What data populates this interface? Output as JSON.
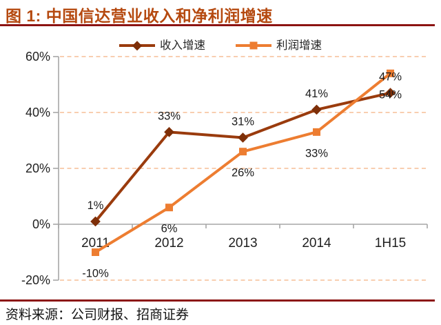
{
  "header": {
    "title": "图 1: 中国信达营业收入和净利润增速"
  },
  "theme": {
    "title_color": "#B5490F",
    "rule_color": "#8C1312",
    "background": "#FFFFFF"
  },
  "chart_data": {
    "type": "line",
    "title": "中国信达营业收入和净利润增速",
    "categories": [
      "2011",
      "2012",
      "2013",
      "2014",
      "1H15"
    ],
    "series": [
      {
        "name": "收入增速",
        "marker": "diamond",
        "color": "#9A3B0D",
        "marker_color": "#7E2F08",
        "values": [
          1,
          33,
          31,
          41,
          47
        ],
        "data_labels": [
          "1%",
          "33%",
          "31%",
          "41%",
          "47%"
        ],
        "label_position": "above"
      },
      {
        "name": "利润增速",
        "marker": "square",
        "color": "#ED7D31",
        "marker_color": "#ED7D31",
        "values": [
          -10,
          6,
          26,
          33,
          54
        ],
        "data_labels": [
          "-10%",
          "6%",
          "26%",
          "33%",
          "54%"
        ],
        "label_position": "below"
      }
    ],
    "ylim": [
      -20,
      60
    ],
    "yticks": [
      {
        "value": 60,
        "label": "60%"
      },
      {
        "value": 40,
        "label": "40%"
      },
      {
        "value": 20,
        "label": "20%"
      },
      {
        "value": 0,
        "label": "0%"
      },
      {
        "value": -20,
        "label": "-20%"
      }
    ],
    "legend_position": "top",
    "grid": "horizontal-dashed",
    "colors": {
      "gridline": "#F5BE95",
      "axis": "#A6A6A6",
      "tick_text": "#1F1F1F",
      "data_label_text": "#1A1A1A"
    }
  },
  "footer": {
    "source": "资料来源：公司财报、招商证券"
  }
}
